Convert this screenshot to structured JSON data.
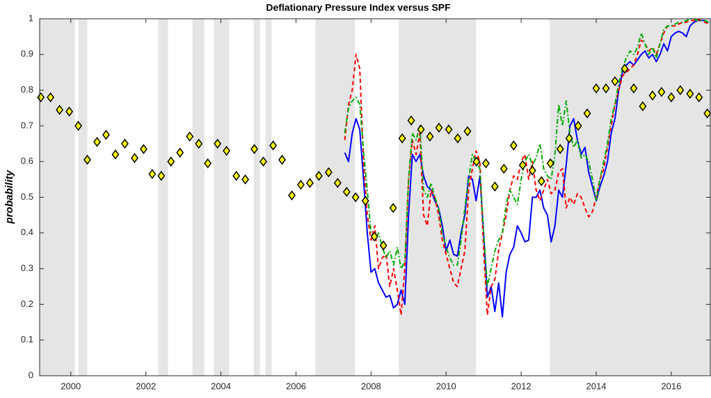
{
  "chart_data": {
    "type": "line",
    "title": "Deflationary Pressure Index versus SPF",
    "ylabel": "probability",
    "xlim": [
      1999.17,
      2017.04
    ],
    "ylim": [
      0,
      1
    ],
    "xticks": [
      2000,
      2002,
      2004,
      2006,
      2008,
      2010,
      2012,
      2014,
      2016
    ],
    "yticks": [
      0,
      0.1,
      0.2,
      0.3,
      0.4,
      0.5,
      0.6,
      0.7,
      0.8,
      0.9,
      1
    ],
    "shaded_color": "#e5e5e5",
    "shaded": [
      [
        1999.17,
        2000.11
      ],
      [
        2000.2,
        2000.44
      ],
      [
        2002.33,
        2002.59
      ],
      [
        2003.24,
        2003.56
      ],
      [
        2003.81,
        2004.22
      ],
      [
        2004.87,
        2005.04
      ],
      [
        2005.19,
        2005.35
      ],
      [
        2006.52,
        2007.57
      ],
      [
        2008.74,
        2010.8
      ],
      [
        2012.76,
        2017.04
      ]
    ],
    "x": [
      2007.3,
      2007.4,
      2007.5,
      2007.6,
      2007.7,
      2007.8,
      2007.9,
      2008.0,
      2008.1,
      2008.2,
      2008.3,
      2008.4,
      2008.5,
      2008.6,
      2008.7,
      2008.8,
      2008.9,
      2009.0,
      2009.1,
      2009.2,
      2009.3,
      2009.4,
      2009.5,
      2009.6,
      2009.7,
      2009.8,
      2009.9,
      2010.0,
      2010.1,
      2010.2,
      2010.3,
      2010.4,
      2010.5,
      2010.6,
      2010.7,
      2010.8,
      2010.9,
      2011.0,
      2011.1,
      2011.2,
      2011.3,
      2011.4,
      2011.5,
      2011.6,
      2011.7,
      2011.8,
      2011.9,
      2012.0,
      2012.1,
      2012.2,
      2012.3,
      2012.4,
      2012.5,
      2012.6,
      2012.7,
      2012.8,
      2012.9,
      2013.0,
      2013.1,
      2013.2,
      2013.3,
      2013.4,
      2013.5,
      2013.6,
      2013.7,
      2013.8,
      2013.9,
      2014.0,
      2014.1,
      2014.2,
      2014.3,
      2014.4,
      2014.5,
      2014.6,
      2014.7,
      2014.8,
      2014.9,
      2015.0,
      2015.1,
      2015.2,
      2015.3,
      2015.4,
      2015.5,
      2015.6,
      2015.7,
      2015.8,
      2015.9,
      2016.0,
      2016.1,
      2016.2,
      2016.3,
      2016.4,
      2016.5,
      2016.6,
      2016.7,
      2016.8,
      2016.9,
      2017.0
    ],
    "series": [
      {
        "type": "line",
        "color": "#0000ff",
        "dash": "none",
        "values": [
          0.625,
          0.6,
          0.68,
          0.72,
          0.69,
          0.55,
          0.4,
          0.29,
          0.3,
          0.26,
          0.24,
          0.22,
          0.225,
          0.19,
          0.2,
          0.24,
          0.2,
          0.45,
          0.62,
          0.6,
          0.62,
          0.56,
          0.53,
          0.52,
          0.49,
          0.47,
          0.42,
          0.35,
          0.38,
          0.34,
          0.335,
          0.4,
          0.45,
          0.56,
          0.55,
          0.49,
          0.56,
          0.4,
          0.22,
          0.25,
          0.18,
          0.26,
          0.165,
          0.29,
          0.34,
          0.36,
          0.42,
          0.4,
          0.375,
          0.38,
          0.5,
          0.5,
          0.52,
          0.47,
          0.45,
          0.375,
          0.42,
          0.52,
          0.5,
          0.59,
          0.7,
          0.72,
          0.66,
          0.62,
          0.64,
          0.57,
          0.53,
          0.49,
          0.53,
          0.56,
          0.6,
          0.68,
          0.72,
          0.8,
          0.85,
          0.87,
          0.88,
          0.87,
          0.885,
          0.9,
          0.91,
          0.89,
          0.9,
          0.88,
          0.9,
          0.93,
          0.91,
          0.95,
          0.96,
          0.965,
          0.96,
          0.95,
          0.98,
          0.99,
          0.995,
          0.995,
          0.995,
          0.99
        ]
      },
      {
        "type": "line",
        "color": "#ff0000",
        "dash": "6 4",
        "values": [
          0.66,
          0.76,
          0.8,
          0.9,
          0.86,
          0.6,
          0.45,
          0.38,
          0.42,
          0.3,
          0.33,
          0.34,
          0.25,
          0.3,
          0.24,
          0.17,
          0.3,
          0.55,
          0.66,
          0.62,
          0.68,
          0.45,
          0.42,
          0.52,
          0.5,
          0.45,
          0.38,
          0.34,
          0.3,
          0.26,
          0.25,
          0.3,
          0.35,
          0.52,
          0.58,
          0.63,
          0.6,
          0.35,
          0.17,
          0.25,
          0.27,
          0.35,
          0.4,
          0.45,
          0.52,
          0.56,
          0.55,
          0.6,
          0.62,
          0.55,
          0.6,
          0.52,
          0.49,
          0.52,
          0.55,
          0.51,
          0.52,
          0.57,
          0.58,
          0.47,
          0.5,
          0.48,
          0.51,
          0.5,
          0.47,
          0.445,
          0.46,
          0.5,
          0.55,
          0.58,
          0.64,
          0.7,
          0.76,
          0.8,
          0.84,
          0.85,
          0.86,
          0.87,
          0.9,
          0.94,
          0.93,
          0.91,
          0.92,
          0.9,
          0.93,
          0.96,
          0.98,
          0.98,
          0.98,
          0.985,
          0.99,
          0.99,
          0.995,
          0.995,
          1.0,
          0.995,
          0.99,
          0.985
        ]
      },
      {
        "type": "line",
        "color": "#00aa00",
        "dash": "7 3 2 3",
        "values": [
          0.68,
          0.75,
          0.77,
          0.78,
          0.76,
          0.63,
          0.52,
          0.4,
          0.38,
          0.4,
          0.36,
          0.33,
          0.35,
          0.31,
          0.36,
          0.3,
          0.32,
          0.55,
          0.68,
          0.66,
          0.7,
          0.52,
          0.5,
          0.54,
          0.5,
          0.47,
          0.4,
          0.36,
          0.33,
          0.31,
          0.31,
          0.38,
          0.47,
          0.55,
          0.62,
          0.6,
          0.58,
          0.4,
          0.25,
          0.3,
          0.35,
          0.38,
          0.4,
          0.48,
          0.52,
          0.5,
          0.48,
          0.55,
          0.6,
          0.62,
          0.59,
          0.61,
          0.65,
          0.58,
          0.56,
          0.55,
          0.62,
          0.76,
          0.7,
          0.77,
          0.68,
          0.64,
          0.66,
          0.61,
          0.62,
          0.6,
          0.55,
          0.49,
          0.55,
          0.6,
          0.65,
          0.72,
          0.76,
          0.82,
          0.86,
          0.89,
          0.91,
          0.9,
          0.92,
          0.96,
          0.93,
          0.9,
          0.92,
          0.89,
          0.93,
          0.97,
          0.98,
          0.98,
          0.985,
          0.99,
          0.99,
          0.995,
          1.0,
          1.0,
          0.995,
          0.995,
          0.995,
          0.99
        ]
      },
      {
        "type": "scatter",
        "color": "#ffff00",
        "marker": "diamond",
        "x": [
          1999.2,
          1999.46,
          1999.7,
          1999.96,
          2000.2,
          2000.44,
          2000.7,
          2000.94,
          2001.19,
          2001.44,
          2001.7,
          2001.94,
          2002.17,
          2002.41,
          2002.67,
          2002.91,
          2003.17,
          2003.41,
          2003.65,
          2003.91,
          2004.15,
          2004.41,
          2004.65,
          2004.89,
          2005.13,
          2005.39,
          2005.63,
          2005.89,
          2006.13,
          2006.37,
          2006.61,
          2006.87,
          2007.11,
          2007.35,
          2007.59,
          2007.85,
          2008.09,
          2008.33,
          2008.59,
          2008.83,
          2009.07,
          2009.33,
          2009.57,
          2009.81,
          2010.07,
          2010.31,
          2010.57,
          2010.81,
          2011.06,
          2011.3,
          2011.54,
          2011.8,
          2012.04,
          2012.3,
          2012.54,
          2012.78,
          2013.04,
          2013.28,
          2013.52,
          2013.76,
          2014.0,
          2014.26,
          2014.5,
          2014.76,
          2015.0,
          2015.24,
          2015.5,
          2015.74,
          2016.0,
          2016.24,
          2016.5,
          2016.74,
          2016.96
        ],
        "values": [
          0.78,
          0.78,
          0.745,
          0.74,
          0.7,
          0.605,
          0.655,
          0.675,
          0.62,
          0.65,
          0.61,
          0.635,
          0.565,
          0.56,
          0.6,
          0.625,
          0.67,
          0.65,
          0.595,
          0.65,
          0.63,
          0.56,
          0.55,
          0.635,
          0.6,
          0.645,
          0.605,
          0.505,
          0.535,
          0.54,
          0.56,
          0.57,
          0.54,
          0.515,
          0.5,
          0.49,
          0.39,
          0.365,
          0.47,
          0.665,
          0.715,
          0.69,
          0.67,
          0.695,
          0.69,
          0.665,
          0.685,
          0.6,
          0.595,
          0.53,
          0.58,
          0.645,
          0.59,
          0.575,
          0.545,
          0.595,
          0.635,
          0.665,
          0.7,
          0.735,
          0.805,
          0.805,
          0.825,
          0.86,
          0.805,
          0.755,
          0.785,
          0.795,
          0.78,
          0.8,
          0.79,
          0.78,
          0.735
        ]
      }
    ]
  }
}
